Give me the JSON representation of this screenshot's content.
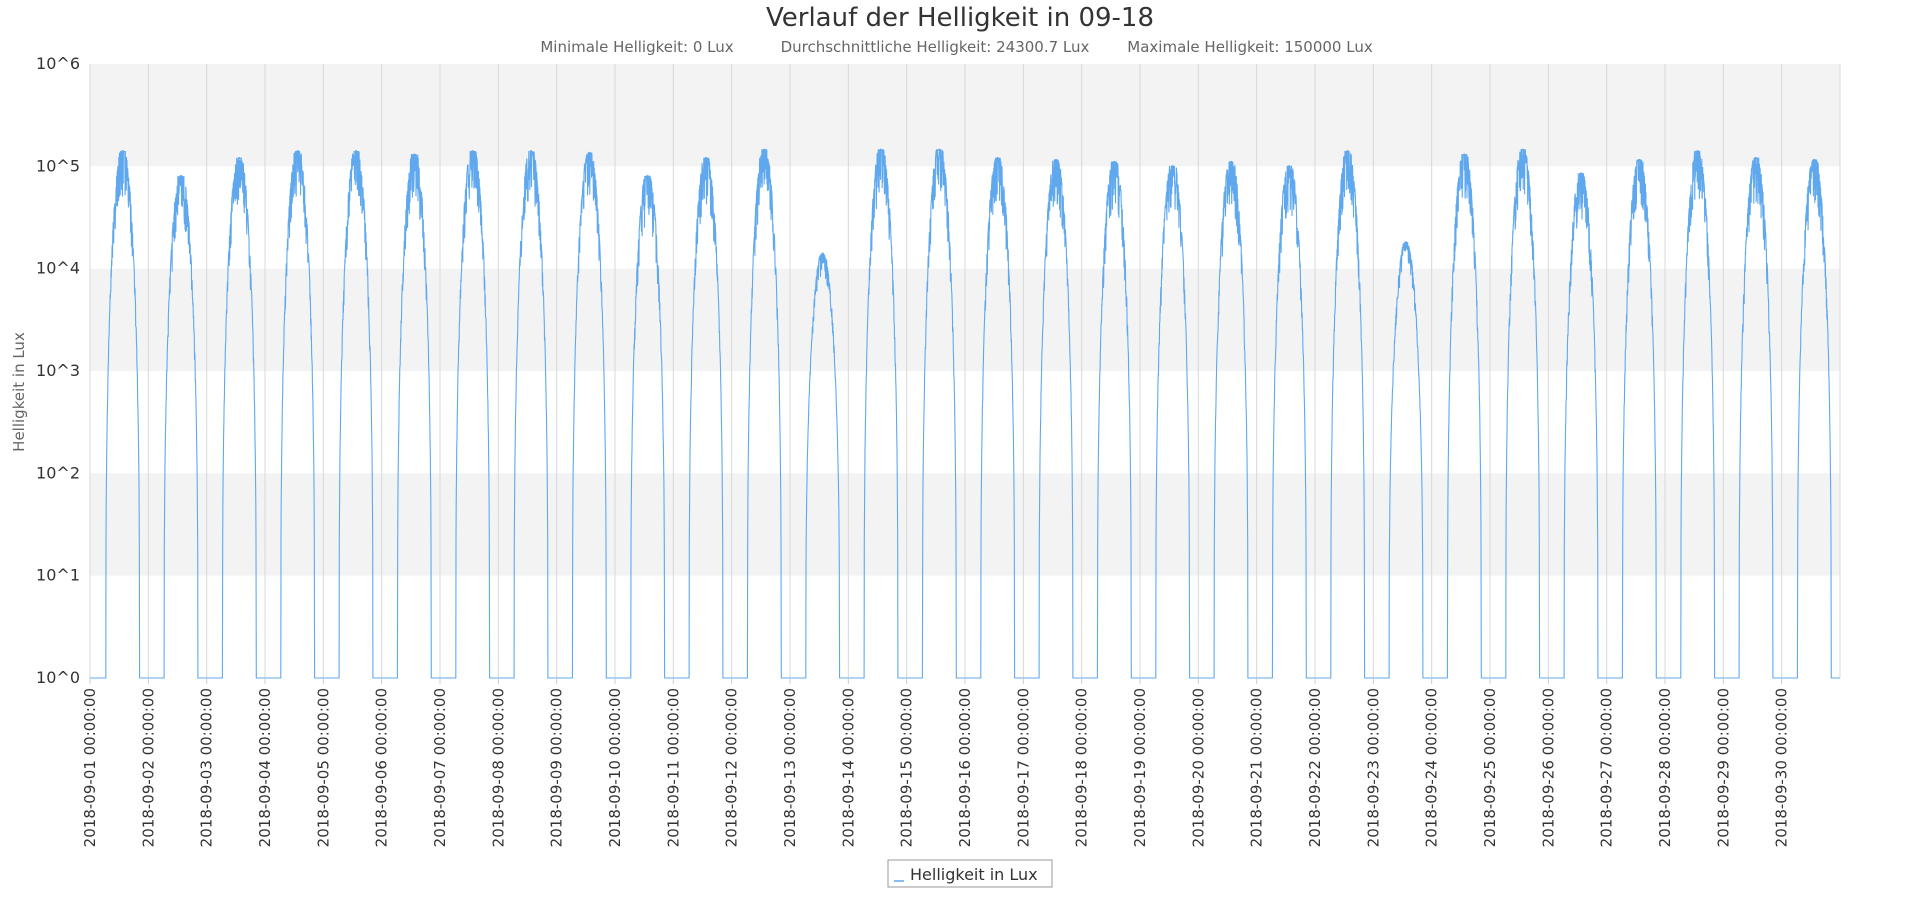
{
  "chart_data": {
    "type": "line",
    "title": "Verlauf der Helligkeit in 09-18",
    "subtitle": [
      "Minimale Helligkeit: 0 Lux",
      "Durchschnittliche Helligkeit: 24300.7 Lux",
      "Maximale Helligkeit: 150000 Lux"
    ],
    "xlabel": "",
    "ylabel": "Helligkeit in Lux",
    "y_scale": "log",
    "ylim": [
      1,
      1000000
    ],
    "y_ticks": [
      {
        "value": 1,
        "label": "10^0"
      },
      {
        "value": 10,
        "label": "10^1"
      },
      {
        "value": 100,
        "label": "10^2"
      },
      {
        "value": 1000,
        "label": "10^3"
      },
      {
        "value": 10000,
        "label": "10^4"
      },
      {
        "value": 100000,
        "label": "10^5"
      },
      {
        "value": 1000000,
        "label": "10^6"
      }
    ],
    "xlim": [
      "2018-09-01 00:00",
      "2018-10-01 00:00"
    ],
    "x_ticks": [
      "2018-09-01 00:00:00",
      "2018-09-02 00:00:00",
      "2018-09-03 00:00:00",
      "2018-09-04 00:00:00",
      "2018-09-05 00:00:00",
      "2018-09-06 00:00:00",
      "2018-09-07 00:00:00",
      "2018-09-08 00:00:00",
      "2018-09-09 00:00:00",
      "2018-09-10 00:00:00",
      "2018-09-11 00:00:00",
      "2018-09-12 00:00:00",
      "2018-09-13 00:00:00",
      "2018-09-14 00:00:00",
      "2018-09-15 00:00:00",
      "2018-09-16 00:00:00",
      "2018-09-17 00:00:00",
      "2018-09-18 00:00:00",
      "2018-09-19 00:00:00",
      "2018-09-20 00:00:00",
      "2018-09-21 00:00:00",
      "2018-09-22 00:00:00",
      "2018-09-23 00:00:00",
      "2018-09-24 00:00:00",
      "2018-09-25 00:00:00",
      "2018-09-26 00:00:00",
      "2018-09-27 00:00:00",
      "2018-09-28 00:00:00",
      "2018-09-29 00:00:00",
      "2018-09-30 00:00:00"
    ],
    "grid": true,
    "legend": {
      "position": "bottom-center",
      "entries": [
        "Helligkeit in Lux"
      ]
    },
    "series": [
      {
        "name": "Helligkeit in Lux",
        "color": "#5fa8ee",
        "daily_peaks_lux": [
          {
            "date": "2018-09-01",
            "peak": 140000
          },
          {
            "date": "2018-09-02",
            "peak": 80000
          },
          {
            "date": "2018-09-03",
            "peak": 120000
          },
          {
            "date": "2018-09-04",
            "peak": 140000
          },
          {
            "date": "2018-09-05",
            "peak": 140000
          },
          {
            "date": "2018-09-06",
            "peak": 130000
          },
          {
            "date": "2018-09-07",
            "peak": 140000
          },
          {
            "date": "2018-09-08",
            "peak": 140000
          },
          {
            "date": "2018-09-09",
            "peak": 135000
          },
          {
            "date": "2018-09-10",
            "peak": 80000
          },
          {
            "date": "2018-09-11",
            "peak": 120000
          },
          {
            "date": "2018-09-12",
            "peak": 145000
          },
          {
            "date": "2018-09-13",
            "peak": 14000
          },
          {
            "date": "2018-09-14",
            "peak": 145000
          },
          {
            "date": "2018-09-15",
            "peak": 145000
          },
          {
            "date": "2018-09-16",
            "peak": 120000
          },
          {
            "date": "2018-09-17",
            "peak": 115000
          },
          {
            "date": "2018-09-18",
            "peak": 110000
          },
          {
            "date": "2018-09-19",
            "peak": 100000
          },
          {
            "date": "2018-09-20",
            "peak": 110000
          },
          {
            "date": "2018-09-21",
            "peak": 100000
          },
          {
            "date": "2018-09-22",
            "peak": 140000
          },
          {
            "date": "2018-09-23",
            "peak": 18000
          },
          {
            "date": "2018-09-24",
            "peak": 130000
          },
          {
            "date": "2018-09-25",
            "peak": 145000
          },
          {
            "date": "2018-09-26",
            "peak": 85000
          },
          {
            "date": "2018-09-27",
            "peak": 115000
          },
          {
            "date": "2018-09-28",
            "peak": 140000
          },
          {
            "date": "2018-09-29",
            "peak": 120000
          },
          {
            "date": "2018-09-30",
            "peak": 115000
          }
        ]
      }
    ]
  }
}
